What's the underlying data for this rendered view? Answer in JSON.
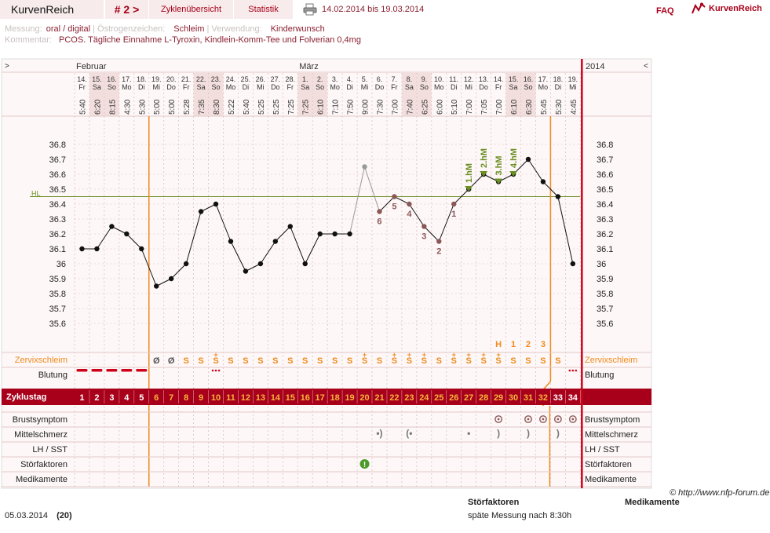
{
  "nav": {
    "brand": "KurvenReich",
    "cycle": "# 2 >",
    "overview": "Zyklenübersicht",
    "stats": "Statistik",
    "period": "14.02.2014 bis 19.03.2014",
    "faq": "FAQ",
    "logo": "KurvenReich"
  },
  "info": {
    "messung_label": "Messung:",
    "messung_value": "oral / digital",
    "oestrogen_label": "Östrogenzeichen:",
    "oestrogen_value": "Schleim",
    "verwendung_label": "Verwendung:",
    "verwendung_value": "Kinderwunsch",
    "kommentar_label": "Kommentar:",
    "kommentar_value": "PCOS. Tägliche Einnahme L-Tyroxin, Kindlein-Komm-Tee und Folverian 0,4mg"
  },
  "chart_data": {
    "type": "line",
    "nav_left": ">",
    "nav_right": "<",
    "year": "2014",
    "months": [
      {
        "label": "Februar",
        "start_index": 0
      },
      {
        "label": "März",
        "start_index": 15
      }
    ],
    "days": [
      "14.",
      "15.",
      "16.",
      "17.",
      "18.",
      "19.",
      "20.",
      "21.",
      "22.",
      "23.",
      "24.",
      "25.",
      "26.",
      "27.",
      "28.",
      "1.",
      "2.",
      "3.",
      "4.",
      "5.",
      "6.",
      "7.",
      "8.",
      "9.",
      "10.",
      "11.",
      "12.",
      "13.",
      "14.",
      "15.",
      "16.",
      "17.",
      "18.",
      "19."
    ],
    "weekdays": [
      "Fr",
      "Sa",
      "So",
      "Mo",
      "Di",
      "Mi",
      "Do",
      "Fr",
      "Sa",
      "So",
      "Mo",
      "Di",
      "Mi",
      "Do",
      "Fr",
      "Sa",
      "So",
      "Mo",
      "Di",
      "Mi",
      "Do",
      "Fr",
      "Sa",
      "So",
      "Mo",
      "Di",
      "Mi",
      "Do",
      "Fr",
      "Sa",
      "So",
      "Mo",
      "Di",
      "Mi"
    ],
    "times": [
      "5:40",
      "6:20",
      "8:15",
      "4:30",
      "5:30",
      "5:00",
      "5:00",
      "5:28",
      "7:35",
      "8:30",
      "5:22",
      "5:40",
      "5:25",
      "5:25",
      "7:25",
      "7:25",
      "6:10",
      "7:10",
      "7:50",
      "9:00",
      "7:30",
      "7:00",
      "7:40",
      "6:25",
      "6:00",
      "5:10",
      "7:00",
      "7:05",
      "7:00",
      "6:10",
      "6:30",
      "5:45",
      "5:30",
      "4:45"
    ],
    "temperatures": [
      36.1,
      36.1,
      36.25,
      36.2,
      36.1,
      35.85,
      35.9,
      36.0,
      36.35,
      36.4,
      36.15,
      35.95,
      36.0,
      36.15,
      36.25,
      36.0,
      36.2,
      36.2,
      36.2,
      36.65,
      36.35,
      36.45,
      36.4,
      36.25,
      36.15,
      36.4,
      36.5,
      36.6,
      36.55,
      36.6,
      36.7,
      36.55,
      36.45,
      36.0
    ],
    "excluded_index": 19,
    "y_ticks": [
      "36.8",
      "36.7",
      "36.6",
      "36.5",
      "36.4",
      "36.3",
      "36.2",
      "36.1",
      "36",
      "35.9",
      "35.8",
      "35.7",
      "35.6"
    ],
    "ylim": [
      35.55,
      36.85
    ],
    "hl_label": "HL",
    "hl_value": 36.45,
    "low_labels": [
      {
        "index": 20,
        "text": "6"
      },
      {
        "index": 21,
        "text": "5"
      },
      {
        "index": 22,
        "text": "4"
      },
      {
        "index": 23,
        "text": "3"
      },
      {
        "index": 24,
        "text": "2"
      },
      {
        "index": 25,
        "text": "1"
      }
    ],
    "high_labels": [
      {
        "index": 26,
        "text": "1.hM"
      },
      {
        "index": 27,
        "text": "2.hM"
      },
      {
        "index": 28,
        "text": "3.hM"
      },
      {
        "index": 29,
        "text": "4.hM"
      }
    ],
    "hm_markers": [
      {
        "index": 28,
        "text": "H"
      },
      {
        "index": 29,
        "text": "1"
      },
      {
        "index": 30,
        "text": "2"
      },
      {
        "index": 31,
        "text": "3"
      }
    ],
    "cycle_days": [
      "1",
      "2",
      "3",
      "4",
      "5",
      "6",
      "7",
      "8",
      "9",
      "10",
      "11",
      "12",
      "13",
      "14",
      "15",
      "16",
      "17",
      "18",
      "19",
      "20",
      "21",
      "22",
      "23",
      "24",
      "25",
      "26",
      "27",
      "28",
      "29",
      "30",
      "31",
      "32",
      "33",
      "34"
    ],
    "rows": {
      "zervix": "Zervixschleim",
      "blutung": "Blutung",
      "zyklustag": "Zyklustag",
      "brust": "Brustsymptom",
      "mittel": "Mittelschmerz",
      "lh": "LH / SST",
      "stoer": "Störfaktoren",
      "medi": "Medikamente"
    },
    "zervix_values": [
      "",
      "",
      "",
      "",
      "",
      "Ø",
      "Ø",
      "S",
      "S",
      "S+",
      "S",
      "S",
      "S",
      "S",
      "S",
      "S",
      "S",
      "S",
      "S",
      "S+",
      "S",
      "S+",
      "S+",
      "S+",
      "S",
      "S+",
      "S+",
      "S+",
      "S+",
      "S",
      "S",
      "S",
      "S",
      ""
    ],
    "blutung_values": [
      "stark",
      "stark",
      "stark",
      "stark",
      "stark",
      "",
      "",
      "",
      "",
      "leicht",
      "",
      "",
      "",
      "",
      "",
      "",
      "",
      "",
      "",
      "",
      "",
      "",
      "",
      "",
      "",
      "",
      "",
      "",
      "",
      "",
      "",
      "",
      "",
      "leicht"
    ],
    "brust_values": [
      28,
      30,
      31,
      32,
      33
    ],
    "mittel_values": [
      {
        "index": 20,
        "glyph": "•)"
      },
      {
        "index": 22,
        "glyph": "(•"
      },
      {
        "index": 26,
        "glyph": "•"
      },
      {
        "index": 28,
        "glyph": ")"
      },
      {
        "index": 30,
        "glyph": ")"
      },
      {
        "index": 32,
        "glyph": ")"
      }
    ],
    "stoer_index": 19,
    "cover_line_indices": [
      5,
      31
    ],
    "end_index": 33
  },
  "footer": {
    "credit": "© http://www.nfp-forum.de",
    "stoer_head": "Störfaktoren",
    "medi_head": "Medikamente",
    "date": "05.03.2014",
    "count": "(20)",
    "note": "späte Messung nach 8:30h"
  },
  "colors": {
    "accent": "#a8001a",
    "orange": "#f08a1c",
    "hl": "#6b8e23",
    "low": "#8c5757",
    "weekend": "#f3dede"
  }
}
